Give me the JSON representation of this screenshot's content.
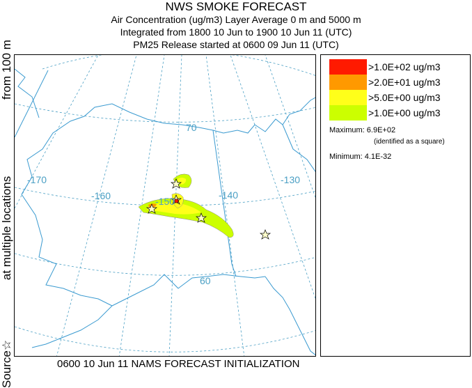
{
  "header": {
    "title": "NWS SMOKE FORECAST",
    "line1": "Air Concentration (ug/m3) Layer Average    0 m and  5000 m",
    "line2": "Integrated from 1800 10 Jun to 1900 10 Jun 11 (UTC)",
    "line3": "PM25 Release started at 0600 09 Jun 11 (UTC)"
  },
  "side_label": {
    "part1": "Source",
    "star": "☆",
    "part2": "at multiple locations",
    "part3": "from   100 m"
  },
  "map": {
    "lon_labels": [
      "-170",
      "-160",
      "-150",
      "-140",
      "-130"
    ],
    "lat_labels": [
      "70",
      "60"
    ],
    "colors": {
      "graticule": "#4a9fc4",
      "coast": "#3a9ad0",
      "border": "#3a9ad0"
    }
  },
  "legend": {
    "items": [
      {
        "label": ">1.0E+02 ug/m3",
        "color": "#ff1a00"
      },
      {
        "label": ">2.0E+01 ug/m3",
        "color": "#ff9900"
      },
      {
        "label": ">5.0E+00 ug/m3",
        "color": "#ffff1a"
      },
      {
        "label": ">1.0E+00 ug/m3",
        "color": "#ccff00"
      }
    ],
    "maximum": "Maximum: 6.9E+02",
    "max_note": "(identified as a square)",
    "minimum": "Minimum: 4.1E-32"
  },
  "footer": "0600 10 Jun 11 NAMS FORECAST INITIALIZATION"
}
